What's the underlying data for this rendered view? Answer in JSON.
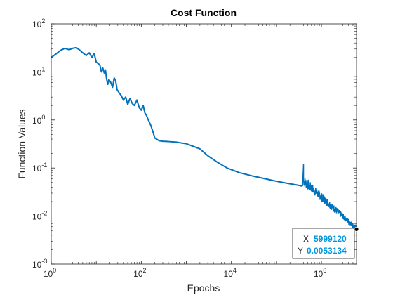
{
  "chart_data": {
    "type": "line",
    "title": "Cost Function",
    "xlabel": "Epochs",
    "ylabel": "Function Values",
    "x_scale": "log",
    "y_scale": "log",
    "xlim": [
      1,
      5999120
    ],
    "ylim": [
      0.001,
      100
    ],
    "x_ticks": [
      {
        "value": 1,
        "base": "10",
        "exp": "0"
      },
      {
        "value": 100,
        "base": "10",
        "exp": "2"
      },
      {
        "value": 10000,
        "base": "10",
        "exp": "4"
      },
      {
        "value": 1000000,
        "base": "10",
        "exp": "6"
      }
    ],
    "y_ticks": [
      {
        "value": 0.001,
        "base": "10",
        "exp": "-3"
      },
      {
        "value": 0.01,
        "base": "10",
        "exp": "-2"
      },
      {
        "value": 0.1,
        "base": "10",
        "exp": "-1"
      },
      {
        "value": 1,
        "base": "10",
        "exp": "0"
      },
      {
        "value": 10,
        "base": "10",
        "exp": "1"
      },
      {
        "value": 100,
        "base": "10",
        "exp": "2"
      }
    ],
    "grid": false,
    "line_color": "#0072bd",
    "series": [
      {
        "x": [
          1,
          1.3,
          1.6,
          2,
          2.5,
          3,
          3.6,
          4.2,
          5,
          6,
          7,
          8,
          9,
          10,
          11,
          12,
          13,
          14,
          15,
          16,
          17,
          18,
          19,
          21,
          23,
          25,
          27,
          29,
          32,
          36,
          40,
          45,
          50,
          56,
          63,
          70,
          80,
          90,
          100,
          110,
          120,
          130,
          140,
          160,
          180,
          200,
          250,
          300,
          400,
          600,
          1000,
          2000,
          3000,
          5000,
          8000,
          15000,
          30000,
          60000,
          100000,
          200000,
          300000,
          380000
        ],
        "y": [
          20,
          24,
          28,
          31,
          29,
          31,
          32,
          29,
          25,
          22,
          25,
          20,
          24,
          16,
          15,
          14,
          10,
          12,
          9.5,
          11,
          7,
          5.5,
          7,
          6,
          4.8,
          7.5,
          6.5,
          4.3,
          3.7,
          3.2,
          2.6,
          3,
          2.1,
          2.8,
          2.2,
          2,
          2.6,
          1.8,
          1.6,
          2,
          1.4,
          1.25,
          1.05,
          0.8,
          0.58,
          0.42,
          0.37,
          0.36,
          0.355,
          0.345,
          0.32,
          0.25,
          0.18,
          0.13,
          0.1,
          0.08,
          0.068,
          0.059,
          0.053,
          0.047,
          0.044,
          0.042
        ]
      }
    ],
    "noisy_tail": {
      "x_start": 400000,
      "x_end": 5999120,
      "y_start": 0.05,
      "y_end": 0.0053134,
      "spike_x": 400000,
      "spike_y": 0.12
    },
    "datatip": {
      "x_label": "X",
      "x_value": "5999120",
      "y_label": "Y",
      "y_value": "0.0053134"
    }
  }
}
